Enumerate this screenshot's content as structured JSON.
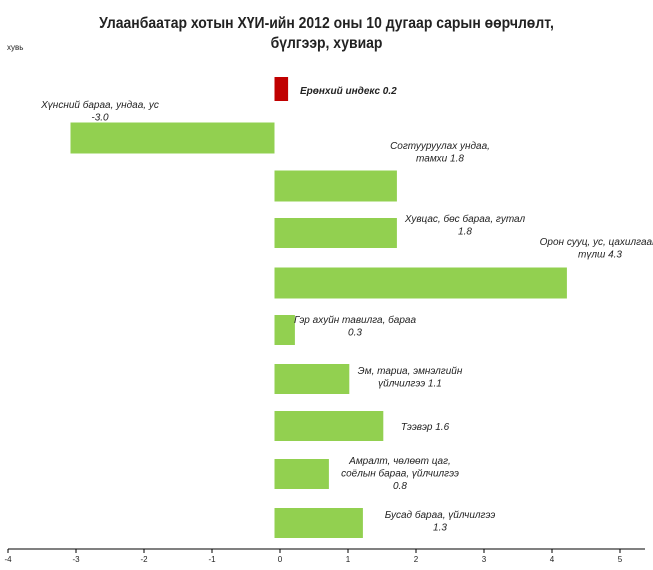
{
  "chart_data": {
    "type": "bar",
    "orientation": "horizontal",
    "title": "Улаанбаатар хотын  ХҮИ-ийн  2012 оны 10 дугаар сарын өөрчлөлт, бүлгээр, хувиар",
    "title_lines": [
      "Улаанбаатар хотын  ХҮИ-ийн  2012 оны 10 дугаар сарын өөрчлөлт,",
      "бүлгээр, хувиар"
    ],
    "ylabel": "хувь",
    "xlim": [
      -4,
      5
    ],
    "xticks": [
      "-4",
      "-3",
      "-2",
      "-1",
      "0",
      "1",
      "2",
      "3",
      "4",
      "5"
    ],
    "grid": false,
    "categories": [
      "Ерөнхий индекс",
      "Хүнсний бараа, ундаа, ус",
      "Согтууруулах ундаа, тамхи",
      "Хувцас, бөс бараа, гутал",
      "Орон сууц, ус, цахилгаан, түлш",
      "Гэр ахуйн тавилга, бараа",
      "Эм, тариа, эмнэлгийн үйлчилгээ",
      "Тээвэр",
      "Амралт, чөлөөт цаг, соёлын бараа, үйлчилгээ",
      "Бусад бараа, үйлчилгээ"
    ],
    "values": [
      0.2,
      -3.0,
      1.8,
      1.8,
      4.3,
      0.3,
      1.1,
      1.6,
      0.8,
      1.3
    ],
    "labels": [
      [
        "Ерөнхий индекс  0.2"
      ],
      [
        "Хүнсний бараа, ундаа, ус",
        "-3.0"
      ],
      [
        "Согтууруулах ундаа,",
        "тамхи  1.8"
      ],
      [
        "Хувцас, бөс бараа, гутал",
        "1.8"
      ],
      [
        "Орон сууц, ус, цахилгаан,",
        "түлш  4.3"
      ],
      [
        "Гэр ахуйн тавилга, бараа",
        "0.3"
      ],
      [
        "Эм, тариа, эмнэлгийн",
        "үйлчилгээ  1.1"
      ],
      [
        "Тээвэр 1.6"
      ],
      [
        "Амралт, чөлөөт цаг,",
        "соёлын бараа, үйлчилгээ",
        "0.8"
      ],
      [
        "Бусад бараа, үйлчилгээ",
        "1.3"
      ]
    ],
    "colors": {
      "highlight": "#c00000",
      "bars": "#92d050",
      "axis": "#000000"
    }
  }
}
